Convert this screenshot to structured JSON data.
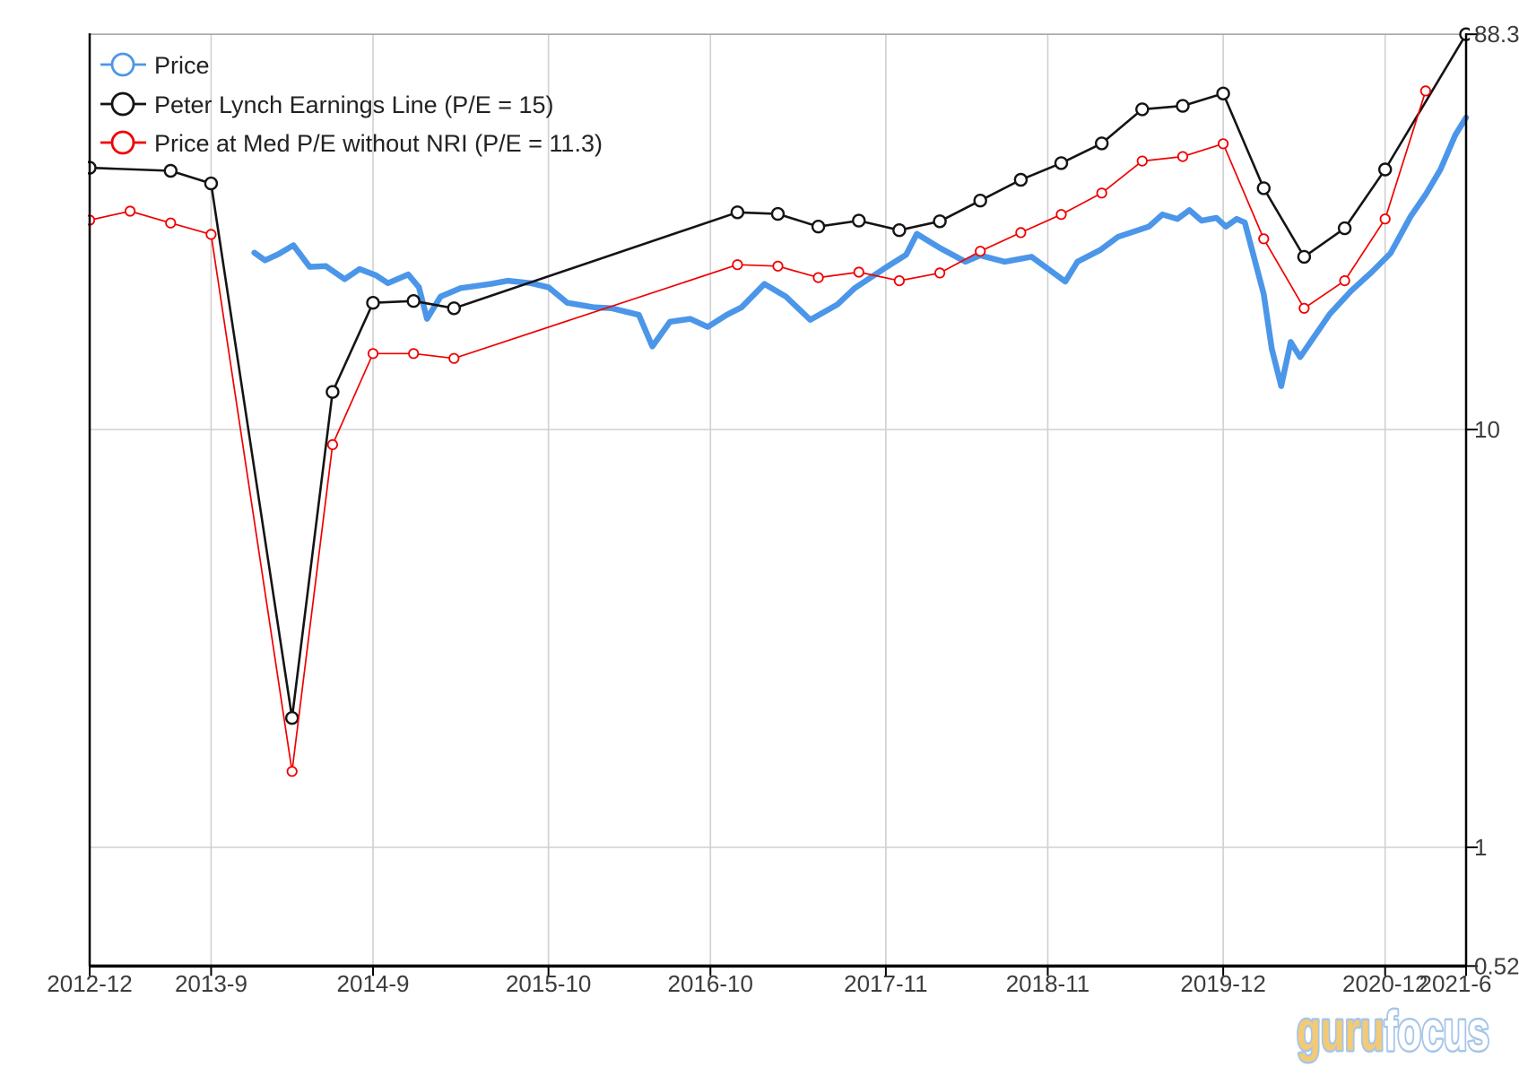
{
  "chart": {
    "legend": [
      {
        "label": "Price",
        "color": "#4b96e9"
      },
      {
        "label": "Peter Lynch Earnings Line (P/E = 15)",
        "color": "#141414"
      },
      {
        "label": "Price at Med P/E without NRI (P/E = 11.3)",
        "color": "#f00000"
      }
    ],
    "watermark": {
      "guru": "guru",
      "focus": "focus",
      "guru_color": "#f4ca74",
      "focus_color": "#ffffff",
      "outline_color": "#a6c6e8"
    }
  },
  "chart_data": {
    "type": "line",
    "y_scale": "log",
    "x_unit": "months_since_2012-12",
    "grid": true,
    "legend_position": "top-left",
    "x_range_months": [
      0,
      102
    ],
    "y_range": [
      0.52,
      88.3
    ],
    "x_ticks": [
      {
        "label": "2012-12",
        "month": 0
      },
      {
        "label": "2013-9",
        "month": 9
      },
      {
        "label": "2014-9",
        "month": 21
      },
      {
        "label": "2015-10",
        "month": 34
      },
      {
        "label": "2016-10",
        "month": 46
      },
      {
        "label": "2017-11",
        "month": 59
      },
      {
        "label": "2018-11",
        "month": 71
      },
      {
        "label": "2019-12",
        "month": 84
      },
      {
        "label": "2020-12",
        "month": 96
      },
      {
        "label": "2021-6",
        "month": 102
      }
    ],
    "y_ticks": [
      {
        "label": "88.3",
        "value": 88.3
      },
      {
        "label": "10",
        "value": 10
      },
      {
        "label": "1",
        "value": 1
      },
      {
        "label": "0.52",
        "value": 0.52
      }
    ],
    "series": [
      {
        "name": "Price",
        "color": "#4b96e9",
        "line_width": 6.5,
        "markers": false,
        "points": [
          [
            12.2,
            26.5
          ],
          [
            13,
            25.4
          ],
          [
            14,
            26.3
          ],
          [
            15.1,
            27.6
          ],
          [
            16.3,
            24.5
          ],
          [
            17.5,
            24.6
          ],
          [
            18.9,
            22.9
          ],
          [
            20,
            24.2
          ],
          [
            21.2,
            23.4
          ],
          [
            22.1,
            22.4
          ],
          [
            23.6,
            23.5
          ],
          [
            24.4,
            21.9
          ],
          [
            25,
            18.4
          ],
          [
            26,
            20.8
          ],
          [
            27.5,
            21.8
          ],
          [
            29.7,
            22.3
          ],
          [
            31,
            22.7
          ],
          [
            32.7,
            22.4
          ],
          [
            34,
            21.9
          ],
          [
            35.4,
            20.1
          ],
          [
            37.4,
            19.6
          ],
          [
            38.7,
            19.5
          ],
          [
            40.7,
            18.8
          ],
          [
            41.7,
            15.8
          ],
          [
            43,
            18.1
          ],
          [
            44.5,
            18.4
          ],
          [
            45.8,
            17.6
          ],
          [
            47.2,
            18.8
          ],
          [
            48.3,
            19.6
          ],
          [
            50,
            22.3
          ],
          [
            51.6,
            20.8
          ],
          [
            53.4,
            18.3
          ],
          [
            55.4,
            19.9
          ],
          [
            56.7,
            21.8
          ],
          [
            58.9,
            24.3
          ],
          [
            60.5,
            26.2
          ],
          [
            61.3,
            29.4
          ],
          [
            63,
            27.2
          ],
          [
            64.9,
            25.2
          ],
          [
            66,
            26.1
          ],
          [
            67.8,
            25.2
          ],
          [
            69.8,
            25.9
          ],
          [
            72.3,
            22.6
          ],
          [
            73.2,
            25.2
          ],
          [
            74.9,
            26.9
          ],
          [
            76.2,
            28.9
          ],
          [
            78.5,
            30.6
          ],
          [
            79.5,
            32.7
          ],
          [
            80.6,
            31.9
          ],
          [
            81.5,
            33.5
          ],
          [
            82.4,
            31.6
          ],
          [
            83.5,
            32.1
          ],
          [
            84.2,
            30.6
          ],
          [
            85,
            31.9
          ],
          [
            85.6,
            31.3
          ],
          [
            87,
            21.1
          ],
          [
            87.6,
            15.6
          ],
          [
            88.3,
            12.7
          ],
          [
            89,
            16.2
          ],
          [
            89.7,
            14.9
          ],
          [
            91.9,
            18.9
          ],
          [
            93.5,
            21.5
          ],
          [
            95,
            23.8
          ],
          [
            96.4,
            26.4
          ],
          [
            97.9,
            32.4
          ],
          [
            99,
            36.5
          ],
          [
            100.1,
            41.9
          ],
          [
            101.2,
            50.7
          ],
          [
            102,
            55.8
          ]
        ]
      },
      {
        "name": "Peter Lynch Earnings Line (P/E = 15)",
        "color": "#141414",
        "line_width": 2.6,
        "markers": true,
        "marker_radius": 6.5,
        "points": [
          [
            -1.5,
            44.5
          ],
          [
            0,
            42.3
          ],
          [
            6,
            41.6
          ],
          [
            9,
            38.8
          ],
          [
            15,
            2.04
          ],
          [
            18,
            12.3
          ],
          [
            21,
            20.1
          ],
          [
            24,
            20.3
          ],
          [
            27,
            19.5
          ],
          [
            48,
            33.1
          ],
          [
            51,
            32.8
          ],
          [
            54,
            30.6
          ],
          [
            57,
            31.6
          ],
          [
            60,
            30.0
          ],
          [
            63,
            31.5
          ],
          [
            66,
            35.3
          ],
          [
            69,
            39.6
          ],
          [
            72,
            43.4
          ],
          [
            75,
            48.4
          ],
          [
            78,
            58.4
          ],
          [
            81,
            59.5
          ],
          [
            84,
            63.7
          ],
          [
            87,
            37.8
          ],
          [
            90,
            25.9
          ],
          [
            93,
            30.3
          ],
          [
            96,
            41.9
          ],
          [
            102,
            88.3
          ]
        ]
      },
      {
        "name": "Price at Med P/E without NRI (P/E = 11.3)",
        "color": "#f00000",
        "line_width": 1.7,
        "markers": true,
        "marker_radius": 5.2,
        "points": [
          [
            -1.4,
            31.0
          ],
          [
            0,
            31.7
          ],
          [
            3,
            33.3
          ],
          [
            6,
            31.2
          ],
          [
            9,
            29.3
          ],
          [
            15,
            1.52
          ],
          [
            18,
            9.2
          ],
          [
            21,
            15.2
          ],
          [
            24,
            15.2
          ],
          [
            27,
            14.8
          ],
          [
            48,
            24.8
          ],
          [
            51,
            24.6
          ],
          [
            54,
            23.1
          ],
          [
            57,
            23.8
          ],
          [
            60,
            22.7
          ],
          [
            63,
            23.7
          ],
          [
            66,
            26.7
          ],
          [
            69,
            29.6
          ],
          [
            72,
            32.7
          ],
          [
            75,
            36.8
          ],
          [
            78,
            43.9
          ],
          [
            81,
            45.0
          ],
          [
            84,
            48.3
          ],
          [
            87,
            28.6
          ],
          [
            90,
            19.5
          ],
          [
            93,
            22.7
          ],
          [
            96,
            31.9
          ],
          [
            99,
            64.6
          ]
        ]
      }
    ]
  }
}
